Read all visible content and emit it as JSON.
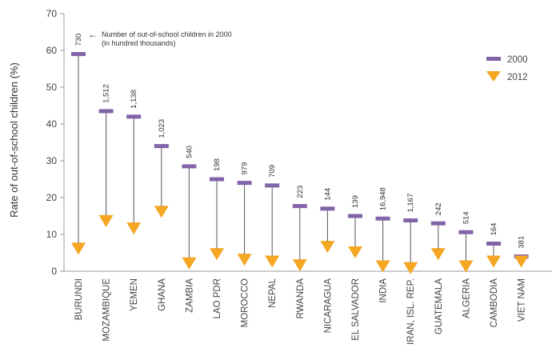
{
  "chart_data": {
    "type": "scatter",
    "ylabel": "Rate of out-of-school children (%)",
    "xlabel": "",
    "ylim": [
      0,
      70
    ],
    "yticks": [
      0,
      10,
      20,
      30,
      40,
      50,
      60,
      70
    ],
    "grid": false,
    "legend_position": "top-right",
    "annotation": {
      "line1": "Number of out-of-school children in 2000",
      "line2": "(in hundred thousands)",
      "arrow": "←"
    },
    "categories": [
      "BURUNDI",
      "MOZAMBIQUE",
      "YEMEN",
      "GHANA",
      "ZAMBIA",
      "LAO PDR",
      "MOROCCO",
      "NEPAL",
      "RWANDA",
      "NICARAGUA",
      "EL SALVADOR",
      "INDIA",
      "IRAN, ISL. REP.",
      "GUATEMALA",
      "ALGERIA",
      "CAMBODIA",
      "VIET NAM"
    ],
    "counts_2000": [
      "730",
      "1,512",
      "1,138",
      "1,023",
      "540",
      "198",
      "979",
      "709",
      "223",
      "144",
      "139",
      "16,948",
      "1,167",
      "242",
      "514",
      "164",
      "381"
    ],
    "series": [
      {
        "name": "2000",
        "marker": "bar",
        "color": "#8264a8",
        "values": [
          59,
          43.5,
          42,
          34,
          28.5,
          25,
          24,
          23.3,
          17.7,
          17,
          15,
          14.3,
          13.8,
          13,
          10.6,
          7.5,
          4
        ]
      },
      {
        "name": "2012",
        "marker": "triangle-down",
        "color": "#f5a623",
        "values": [
          6,
          13.5,
          11.5,
          16,
          2,
          4.5,
          3,
          2.5,
          1.5,
          6.5,
          5,
          1.2,
          0.7,
          4.5,
          1.2,
          2.5,
          2.5
        ]
      }
    ],
    "connector_color": "#555555",
    "axis_color": "#999999"
  }
}
